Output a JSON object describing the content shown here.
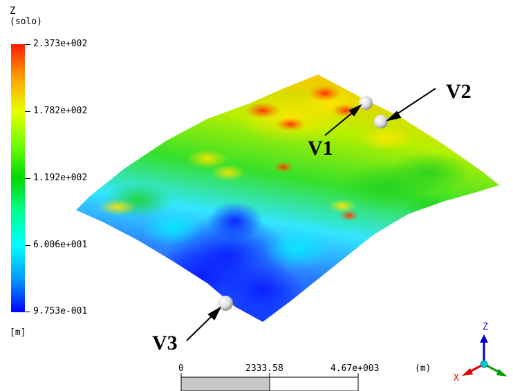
{
  "legend": {
    "title": "Z",
    "subtitle": "(solo)",
    "unit": "[m]",
    "ticks": [
      "2.373e+002",
      "1.782e+002",
      "1.192e+002",
      "6.006e+001",
      "9.753e-001"
    ],
    "colors": [
      "#ff1a00",
      "#ff9d00",
      "#e8ff00",
      "#6cff00",
      "#00d800",
      "#00ff8c",
      "#00ffff",
      "#0096ff",
      "#0000ff"
    ]
  },
  "markers": [
    {
      "id": "V1",
      "label": "V1"
    },
    {
      "id": "V2",
      "label": "V2"
    },
    {
      "id": "V3",
      "label": "V3"
    }
  ],
  "scale_bar": {
    "start_label": "0",
    "mid_label": "2333.58",
    "end_label": "4.67e+003",
    "unit_label": "(m)"
  },
  "triad": {
    "z_label": "Z",
    "x_label": "X",
    "z_color": "#0000cc",
    "x_color": "#e00000",
    "y_color": "#00a000"
  }
}
